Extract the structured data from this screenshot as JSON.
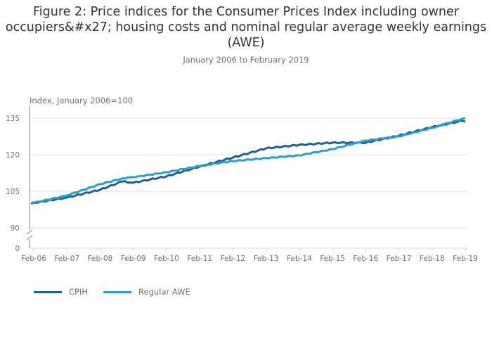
{
  "chart_data": {
    "type": "line",
    "title": "Figure 2: Price indices for the Consumer Prices Index including owner occupiers&#x27; housing costs and nominal regular average weekly earnings (AWE)",
    "subtitle": "January 2006 to February 2019",
    "xlabel": "",
    "ylabel": "Index, January 2006=100",
    "ylim": [
      90,
      137
    ],
    "yticks": [
      0,
      90,
      105,
      120,
      135
    ],
    "y_axis_break": "between 0 and 90",
    "xticks": [
      "Feb-06",
      "Feb-07",
      "Feb-08",
      "Feb-09",
      "Feb-10",
      "Feb-11",
      "Feb-12",
      "Feb-13",
      "Feb-14",
      "Feb-15",
      "Feb-16",
      "Feb-17",
      "Feb-18",
      "Feb-19"
    ],
    "x": [
      "Jan-06",
      "Feb-07",
      "Feb-08",
      "Oct-08",
      "Feb-09",
      "Feb-10",
      "Feb-11",
      "Feb-12",
      "Feb-13",
      "Feb-14",
      "Feb-15",
      "Feb-16",
      "Feb-17",
      "Feb-18",
      "Jan-19",
      "Feb-19"
    ],
    "x_years": [
      2006.0,
      2007.08,
      2008.08,
      2008.75,
      2009.08,
      2010.08,
      2011.08,
      2012.08,
      2013.08,
      2014.08,
      2015.08,
      2016.08,
      2017.08,
      2018.08,
      2019.0,
      2019.08
    ],
    "series": [
      {
        "name": "CPIH",
        "color": "#206095",
        "values": [
          100.0,
          102.4,
          105.6,
          109.0,
          108.5,
          111.1,
          115.1,
          118.8,
          122.6,
          124.0,
          124.9,
          124.9,
          127.8,
          131.3,
          133.9,
          133.6
        ]
      },
      {
        "name": "Regular AWE",
        "color": "#27a0cc",
        "values": [
          100.0,
          103.3,
          107.9,
          110.3,
          110.8,
          112.8,
          115.4,
          117.4,
          118.6,
          119.7,
          122.3,
          125.8,
          127.5,
          131.0,
          134.8,
          135.0
        ]
      }
    ],
    "grid": true,
    "legend": "bottom-left"
  }
}
